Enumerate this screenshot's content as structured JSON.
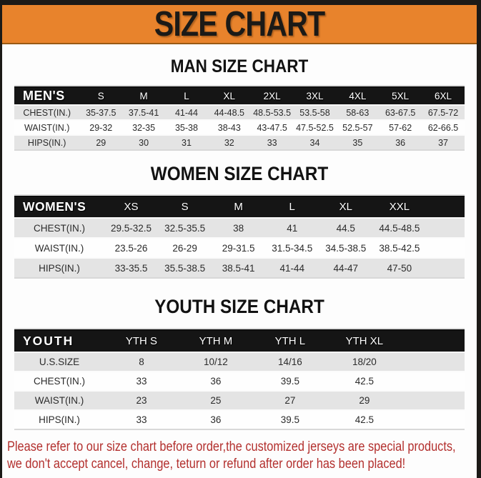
{
  "banner": {
    "title": "SIZE CHART"
  },
  "colors": {
    "banner_orange": "#E8832C",
    "frame_black": "#1C1A17",
    "header_black": "#151515",
    "row_gray": "#E4E4E4",
    "note_red": "#B3302E"
  },
  "sections": [
    {
      "title": "MAN SIZE CHART",
      "table": {
        "corner": "MEN'S",
        "sizes": [
          "S",
          "M",
          "L",
          "XL",
          "2XL",
          "3XL",
          "4XL",
          "5XL",
          "6XL"
        ],
        "rows": [
          {
            "label": "CHEST(IN.)",
            "values": [
              "35-37.5",
              "37.5-41",
              "41-44",
              "44-48.5",
              "48.5-53.5",
              "53.5-58",
              "58-63",
              "63-67.5",
              "67.5-72"
            ]
          },
          {
            "label": "WAIST(IN.)",
            "values": [
              "29-32",
              "32-35",
              "35-38",
              "38-43",
              "43-47.5",
              "47.5-52.5",
              "52.5-57",
              "57-62",
              "62-66.5"
            ]
          },
          {
            "label": "HIPS(IN.)",
            "values": [
              "29",
              "30",
              "31",
              "32",
              "33",
              "34",
              "35",
              "36",
              "37"
            ]
          }
        ]
      }
    },
    {
      "title": "WOMEN SIZE CHART",
      "table": {
        "corner": "WOMEN'S",
        "sizes": [
          "XS",
          "S",
          "M",
          "L",
          "XL",
          "XXL"
        ],
        "rows": [
          {
            "label": "CHEST(IN.)",
            "values": [
              "29.5-32.5",
              "32.5-35.5",
              "38",
              "41",
              "44.5",
              "44.5-48.5"
            ]
          },
          {
            "label": "WAIST(IN.)",
            "values": [
              "23.5-26",
              "26-29",
              "29-31.5",
              "31.5-34.5",
              "34.5-38.5",
              "38.5-42.5"
            ]
          },
          {
            "label": "HIPS(IN.)",
            "values": [
              "33-35.5",
              "35.5-38.5",
              "38.5-41",
              "41-44",
              "44-47",
              "47-50"
            ]
          }
        ]
      }
    },
    {
      "title": "YOUTH SIZE CHART",
      "table": {
        "corner": "YOUTH",
        "sizes": [
          "YTH S",
          "YTH M",
          "YTH L",
          "YTH XL"
        ],
        "rows": [
          {
            "label": "U.S.SIZE",
            "values": [
              "8",
              "10/12",
              "14/16",
              "18/20"
            ]
          },
          {
            "label": "CHEST(IN.)",
            "values": [
              "33",
              "36",
              "39.5",
              "42.5"
            ]
          },
          {
            "label": "WAIST(IN.)",
            "values": [
              "23",
              "25",
              "27",
              "29"
            ]
          },
          {
            "label": "HIPS(IN.)",
            "values": [
              "33",
              "36",
              "39.5",
              "42.5"
            ]
          }
        ]
      }
    }
  ],
  "note": {
    "line1": "Please refer to our size chart before order,the customized jerseys are special products,",
    "line2": "we don't accept cancel, change, teturn or refund after order has been placed!"
  }
}
